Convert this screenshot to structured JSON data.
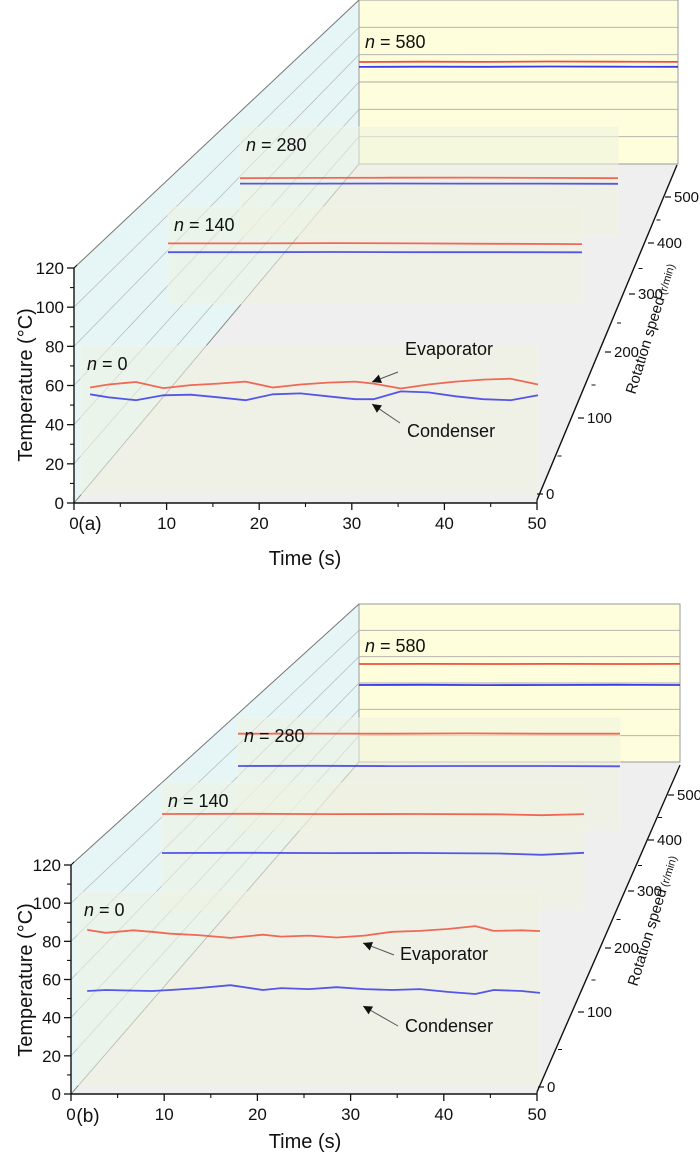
{
  "chart_data": [
    {
      "id": "a",
      "type": "line",
      "subplot_label": "(a)",
      "title": "",
      "xlabel": "Time (s)",
      "ylabel": "Temperature (°C)",
      "zlabel": "Rotation speed",
      "zlabel_unit": "(r/min)",
      "xlim": [
        0,
        50
      ],
      "ylim": [
        0,
        120
      ],
      "zlim": [
        0,
        580
      ],
      "x_ticks": [
        "0",
        "10",
        "20",
        "30",
        "40",
        "50"
      ],
      "y_ticks": [
        "0",
        "20",
        "40",
        "60",
        "80",
        "100",
        "120"
      ],
      "z_ticks": [
        "0",
        "100",
        "200",
        "300",
        "400",
        "500"
      ],
      "annotations": [
        {
          "text": "Evaporator",
          "target_series": "Evaporator",
          "panel": "0"
        },
        {
          "text": "Condenser",
          "target_series": "Condenser",
          "panel": "0"
        }
      ],
      "panels": [
        {
          "n": 0,
          "label_prefix": "n",
          "label_value": "= 0",
          "series": [
            {
              "name": "Evaporator",
              "color": "#f0503c",
              "x": [
                1,
                3,
                6,
                9,
                12,
                15,
                18,
                21,
                24,
                27,
                30,
                32,
                35,
                38,
                41,
                44,
                47,
                50
              ],
              "y": [
                59,
                60.5,
                61.8,
                58.7,
                60.2,
                61,
                62,
                59,
                60.5,
                61.5,
                62,
                61,
                58.5,
                60.5,
                62,
                63,
                63.5,
                60.5
              ]
            },
            {
              "name": "Condenser",
              "color": "#3a3ae6",
              "x": [
                1,
                3,
                6,
                9,
                12,
                15,
                18,
                21,
                24,
                27,
                30,
                32,
                35,
                38,
                41,
                44,
                47,
                50
              ],
              "y": [
                55.5,
                54,
                52.5,
                55,
                55.3,
                54,
                52.5,
                55.5,
                56,
                54.5,
                53,
                53,
                57,
                56.5,
                54.5,
                53,
                52.5,
                55
              ]
            }
          ]
        },
        {
          "n": 140,
          "label_prefix": "n",
          "label_value": "= 140",
          "series": [
            {
              "name": "Evaporator",
              "color": "#f0503c",
              "x": [
                0,
                10,
                20,
                30,
                40,
                50
              ],
              "y": [
                94,
                94,
                94.2,
                94,
                93.8,
                93.6
              ]
            },
            {
              "name": "Condenser",
              "color": "#3a3ae6",
              "x": [
                0,
                10,
                20,
                30,
                40,
                50
              ],
              "y": [
                89,
                89,
                89.1,
                89,
                89,
                88.9
              ]
            }
          ]
        },
        {
          "n": 280,
          "label_prefix": "n",
          "label_value": "= 280",
          "series": [
            {
              "name": "Evaporator",
              "color": "#f0503c",
              "x": [
                0,
                10,
                20,
                30,
                40,
                50
              ],
              "y": [
                93,
                93.2,
                93.3,
                93.4,
                93.2,
                93
              ]
            },
            {
              "name": "Condenser",
              "color": "#3a3ae6",
              "x": [
                0,
                10,
                20,
                30,
                40,
                50
              ],
              "y": [
                89.6,
                89.6,
                89.7,
                89.6,
                89.6,
                89.5
              ]
            }
          ]
        },
        {
          "n": 580,
          "label_prefix": "n",
          "label_value": "= 580",
          "series": [
            {
              "name": "Evaporator",
              "color": "#f0503c",
              "x": [
                0,
                10,
                20,
                30,
                40,
                50
              ],
              "y": [
                74.6,
                74.8,
                74.7,
                75,
                74.8,
                74.7
              ]
            },
            {
              "name": "Condenser",
              "color": "#3a3ae6",
              "x": [
                0,
                10,
                20,
                30,
                40,
                50
              ],
              "y": [
                71,
                71.2,
                71.1,
                71.3,
                71.2,
                71.1
              ]
            }
          ]
        }
      ]
    },
    {
      "id": "b",
      "type": "line",
      "subplot_label": "(b)",
      "title": "",
      "xlabel": "Time (s)",
      "ylabel": "Temperature (°C)",
      "zlabel": "Rotation speed",
      "zlabel_unit": "(r/min)",
      "xlim": [
        0,
        50
      ],
      "ylim": [
        0,
        120
      ],
      "zlim": [
        0,
        580
      ],
      "x_ticks": [
        "0",
        "10",
        "20",
        "30",
        "40",
        "50"
      ],
      "y_ticks": [
        "0",
        "20",
        "40",
        "60",
        "80",
        "100",
        "120"
      ],
      "z_ticks": [
        "0",
        "100",
        "200",
        "300",
        "400",
        "500"
      ],
      "annotations": [
        {
          "text": "Evaporator",
          "target_series": "Evaporator",
          "panel": "0"
        },
        {
          "text": "Condenser",
          "target_series": "Condenser",
          "panel": "0"
        }
      ],
      "panels": [
        {
          "n": 0,
          "label_prefix": "n",
          "label_value": "= 0",
          "series": [
            {
              "name": "Evaporator",
              "color": "#f0503c",
              "x": [
                1,
                3,
                6,
                8,
                10,
                13,
                16.5,
                20,
                22,
                25,
                28,
                31,
                34,
                37,
                40,
                43,
                45,
                48,
                50
              ],
              "y": [
                86,
                84.5,
                85.8,
                85,
                84,
                83.3,
                81.8,
                83.5,
                82.5,
                83,
                82,
                83,
                85,
                85.5,
                86.5,
                88,
                85.5,
                85.8,
                85.4
              ]
            },
            {
              "name": "Condenser",
              "color": "#3a3ae6",
              "x": [
                1,
                3,
                6,
                8,
                10,
                13,
                16.5,
                20,
                22,
                25,
                28,
                31,
                34,
                37,
                40,
                43,
                45,
                48,
                50
              ],
              "y": [
                54,
                54.5,
                54.2,
                54,
                54.5,
                55.5,
                57,
                54.5,
                55.5,
                55,
                56,
                55,
                54.5,
                55,
                53.5,
                52.4,
                54.5,
                54,
                53
              ]
            }
          ]
        },
        {
          "n": 140,
          "label_prefix": "n",
          "label_value": "= 140",
          "series": [
            {
              "name": "Evaporator",
              "color": "#f0503c",
              "x": [
                0,
                10,
                20,
                30,
                40,
                45,
                50
              ],
              "y": [
                104.7,
                104.8,
                104.6,
                104.7,
                104.5,
                104,
                104.6
              ]
            },
            {
              "name": "Condenser",
              "color": "#3a3ae6",
              "x": [
                0,
                10,
                20,
                30,
                40,
                45,
                50
              ],
              "y": [
                81.9,
                82,
                81.8,
                81.9,
                81.6,
                80.8,
                82
              ]
            }
          ]
        },
        {
          "n": 280,
          "label_prefix": "n",
          "label_value": "= 280",
          "series": [
            {
              "name": "Evaporator",
              "color": "#f0503c",
              "x": [
                0,
                10,
                20,
                30,
                40,
                50
              ],
              "y": [
                112,
                112.1,
                112,
                112.2,
                112,
                112
              ]
            },
            {
              "name": "Condenser",
              "color": "#3a3ae6",
              "x": [
                0,
                10,
                20,
                30,
                40,
                50
              ],
              "y": [
                91.4,
                91.5,
                91.3,
                91.4,
                91.4,
                91.2
              ]
            }
          ]
        },
        {
          "n": 580,
          "label_prefix": "n",
          "label_value": "= 580",
          "series": [
            {
              "name": "Evaporator",
              "color": "#f0503c",
              "x": [
                0,
                10,
                20,
                30,
                40,
                50
              ],
              "y": [
                74.4,
                74.5,
                74.4,
                74.5,
                74.4,
                74.5
              ]
            },
            {
              "name": "Condenser",
              "color": "#3a3ae6",
              "x": [
                0,
                10,
                20,
                30,
                40,
                50
              ],
              "y": [
                58.5,
                58.6,
                58.4,
                58.5,
                58.6,
                58.5
              ]
            }
          ]
        }
      ]
    }
  ],
  "colors": {
    "left_wall": "#e6f6f6",
    "back_wall": "#fefedc",
    "floor": "#efefef",
    "panel_fill": "#eef2e0",
    "axis": "#111111",
    "gridline": "#aaaaaa",
    "evaporator": "#f0503c",
    "condenser": "#3a3ae6"
  }
}
